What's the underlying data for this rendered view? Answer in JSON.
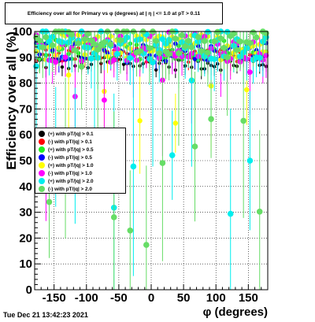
{
  "chart_data": {
    "type": "scatter",
    "title": "Efficiency over all for Primary vs φ (degrees) at | η | <= 1.0 at pT > 0.11",
    "xlabel": "φ (degrees)",
    "ylabel": "Efficiency over all (%)",
    "xlim": [
      -180,
      180
    ],
    "ylim": [
      0,
      100
    ],
    "x_ticks": [
      -150,
      -100,
      -50,
      0,
      50,
      100,
      150
    ],
    "y_ticks": [
      0,
      10,
      20,
      30,
      40,
      50,
      60,
      70,
      80,
      90,
      100
    ],
    "grid": true,
    "legend_position": "left-middle",
    "series": [
      {
        "name": "(+) with pT/|q| > 0.1",
        "color": "#000000",
        "marker_radius": 2.2,
        "center": 88,
        "spread": 3,
        "err": 3,
        "outlier_every": 0,
        "outlier_min": 80
      },
      {
        "name": "(-) with pT/|q| > 0.1",
        "color": "#ff0000",
        "marker_radius": 2.2,
        "center": 91,
        "spread": 3,
        "err": 3,
        "outlier_every": 0,
        "outlier_min": 82
      },
      {
        "name": "(+) with pT/|q| > 0.5",
        "color": "#22ee22",
        "marker_radius": 2.8,
        "center": 93,
        "spread": 4,
        "err": 4,
        "outlier_every": 0,
        "outlier_min": 84
      },
      {
        "name": "(-) with pT/|q| > 0.5",
        "color": "#0000ff",
        "marker_radius": 2.8,
        "center": 92,
        "spread": 4,
        "err": 4,
        "outlier_every": 0,
        "outlier_min": 84
      },
      {
        "name": "(+) with pT/|q| > 1.0",
        "color": "#ffff00",
        "marker_radius": 3.2,
        "center": 94,
        "spread": 5,
        "err": 6,
        "outlier_every": 11,
        "outlier_min": 62
      },
      {
        "name": "(-) with pT/|q| > 1.0",
        "color": "#ff00ff",
        "marker_radius": 3.4,
        "center": 94,
        "spread": 6,
        "err": 7,
        "outlier_every": 9,
        "outlier_min": 55
      },
      {
        "name": "(+) with pT/|q| > 2.0",
        "color": "#00eeee",
        "marker_radius": 3.8,
        "center": 95,
        "spread": 6,
        "err": 10,
        "outlier_every": 6,
        "outlier_min": 15
      },
      {
        "name": "(-) with pT/|q| > 2.0",
        "color": "#66dd66",
        "marker_radius": 3.8,
        "center": 96,
        "spread": 5,
        "err": 10,
        "outlier_every": 5,
        "outlier_min": 15
      }
    ],
    "points_per_series": 72
  },
  "timestamp": "Tue Dec 21 13:42:23 2021"
}
